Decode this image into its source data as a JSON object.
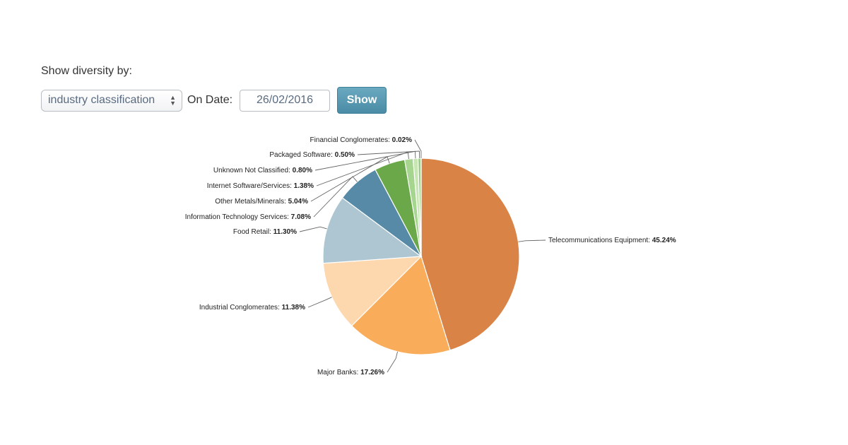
{
  "controls": {
    "show_label": "Show diversity by:",
    "select_value": "industry classification",
    "date_label": "On Date:",
    "date_value": "26/02/2016",
    "show_button": "Show"
  },
  "chart_data": {
    "type": "pie",
    "slices": [
      {
        "label": "Telecommunications Equipment",
        "value": 45.24,
        "value_text": "45.24%",
        "color": "#d98346"
      },
      {
        "label": "Major Banks",
        "value": 17.26,
        "value_text": "17.26%",
        "color": "#f9ac59"
      },
      {
        "label": "Industrial Conglomerates",
        "value": 11.38,
        "value_text": "11.38%",
        "color": "#fdd7ad"
      },
      {
        "label": "Food Retail",
        "value": 11.3,
        "value_text": "11.30%",
        "color": "#adc6d2"
      },
      {
        "label": "Information Technology Services",
        "value": 7.08,
        "value_text": "7.08%",
        "color": "#568aa6"
      },
      {
        "label": "Other Metals/Minerals",
        "value": 5.04,
        "value_text": "5.04%",
        "color": "#6aa84a"
      },
      {
        "label": "Internet Software/Services",
        "value": 1.38,
        "value_text": "1.38%",
        "color": "#a5d58e"
      },
      {
        "label": "Unknown Not Classified",
        "value": 0.8,
        "value_text": "0.80%",
        "color": "#c8e6b4"
      },
      {
        "label": "Packaged Software",
        "value": 0.5,
        "value_text": "0.50%",
        "color": "#9ccc8c"
      },
      {
        "label": "Financial Conglomerates",
        "value": 0.02,
        "value_text": "0.02%",
        "color": "#3d78b5"
      }
    ]
  }
}
